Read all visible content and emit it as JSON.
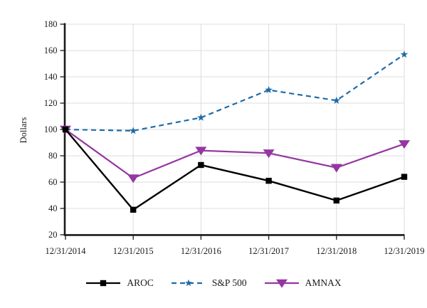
{
  "figure": {
    "background_color": "#ffffff",
    "grid_color": "#dcdcdc",
    "axis_color": "#1a1a1a",
    "text_color": "#1a1a1a"
  },
  "chart_data": {
    "type": "line",
    "title": "",
    "xlabel": "",
    "ylabel": "Dollars",
    "categories": [
      "12/31/2014",
      "12/31/2015",
      "12/31/2016",
      "12/31/2017",
      "12/31/2018",
      "12/31/2019"
    ],
    "yticks": [
      20,
      40,
      60,
      80,
      100,
      120,
      140,
      160,
      180
    ],
    "ylim": [
      20,
      180
    ],
    "grid": true,
    "legend_position": "bottom",
    "series": [
      {
        "name": "AROC",
        "color": "#000000",
        "line_style": "solid",
        "marker": "square",
        "values": [
          100,
          39,
          73,
          61,
          46,
          64
        ]
      },
      {
        "name": "S&P 500",
        "color": "#1F6CA9",
        "line_style": "dashed",
        "marker": "star",
        "values": [
          100,
          99,
          109,
          130,
          122,
          157
        ]
      },
      {
        "name": "AMNAX",
        "color": "#9536A2",
        "line_style": "solid",
        "marker": "triangle-down",
        "values": [
          100,
          63,
          84,
          82,
          71,
          89
        ]
      }
    ]
  }
}
